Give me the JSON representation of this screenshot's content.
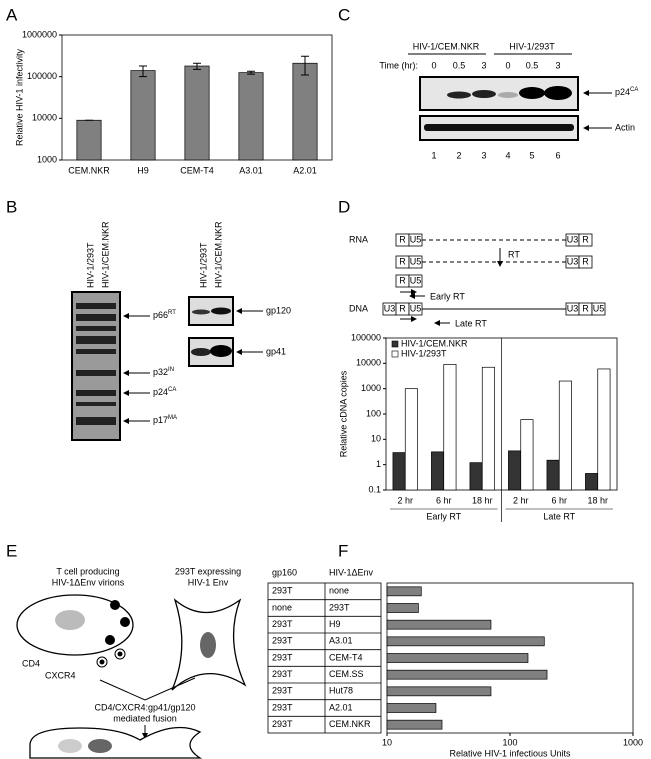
{
  "panel_labels": [
    "A",
    "B",
    "C",
    "D",
    "E",
    "F"
  ],
  "chart_data": [
    {
      "type": "bar",
      "y_label": "Relative HIV-1 infectivity",
      "categories": [
        "CEM.NKR",
        "H9",
        "CEM-T4",
        "A3.01",
        "A2.01"
      ],
      "values": [
        9000,
        140000,
        180000,
        125000,
        210000
      ],
      "errors": [
        0,
        40000,
        30000,
        10000,
        100000
      ],
      "color": "#808080",
      "log_scale": true,
      "ylim": [
        1000,
        1000000
      ],
      "yticks": [
        1000,
        10000,
        100000,
        1000000
      ]
    },
    {
      "type": "bar",
      "y_label": "Relative cDNA copies",
      "categories": [
        "2 hr",
        "6 hr",
        "18 hr",
        "2 hr",
        "6 hr",
        "18 hr"
      ],
      "group_labels": [
        "Early RT",
        "Late RT"
      ],
      "series": [
        {
          "name": "HIV-1/CEM.NKR",
          "color": "#333333",
          "values": [
            3,
            3.2,
            1.2,
            3.5,
            1.5,
            0.45
          ]
        },
        {
          "name": "HIV-1/293T",
          "color": "#ffffff",
          "values": [
            1000,
            9000,
            7000,
            60,
            2000,
            6000
          ]
        }
      ],
      "log_scale": true,
      "legend": "upper left",
      "ylim": [
        0.1,
        100000
      ],
      "yticks": [
        0.1,
        1,
        10,
        100,
        1000,
        10000,
        100000
      ]
    },
    {
      "type": "barh",
      "x_label": "Relative HIV-1 infectious Units",
      "column_headers": [
        "gp160",
        "HIV-1ΔEnv"
      ],
      "gp160": [
        "293T",
        "none",
        "293T",
        "293T",
        "293T",
        "293T",
        "293T",
        "293T",
        "293T"
      ],
      "categories": [
        "none",
        "293T",
        "H9",
        "A3.01",
        "CEM-T4",
        "CEM.SS",
        "Hut78",
        "A2.01",
        "CEM.NKR"
      ],
      "values": [
        19,
        18,
        70,
        190,
        140,
        200,
        70,
        25,
        28
      ],
      "color": "#808080",
      "log_scale": true,
      "xlim": [
        10,
        1000
      ],
      "xticks": [
        10,
        100,
        1000
      ]
    }
  ],
  "blot_b": {
    "lanes_left": [
      "HIV-1/293T",
      "HIV-1/CEM.NKR"
    ],
    "bands_left": [
      {
        "name": "p66",
        "sup": "RT"
      },
      {
        "name": "p32",
        "sup": "IN"
      },
      {
        "name": "p24",
        "sup": "CA"
      },
      {
        "name": "p17",
        "sup": "MA"
      }
    ],
    "lanes_right": [
      "HIV-1/293T",
      "HIV-1/CEM.NKR"
    ],
    "bands_right": [
      "gp120",
      "gp41"
    ]
  },
  "blot_c": {
    "groups": [
      "HIV-1/CEM.NKR",
      "HIV-1/293T"
    ],
    "time_label": "Time (hr):",
    "times": [
      "0",
      "0.5",
      "3",
      "0",
      "0.5",
      "3"
    ],
    "band_top": {
      "name": "p24",
      "sup": "CA"
    },
    "band_bottom": "Actin",
    "lanes": [
      "1",
      "2",
      "3",
      "4",
      "5",
      "6"
    ]
  },
  "scheme_d": {
    "rna": "RNA",
    "dna": "DNA",
    "rt": "RT",
    "early": "Early RT",
    "late": "Late RT",
    "r": "R",
    "u5": "U5",
    "u3": "U3"
  },
  "diagram_e": {
    "cell_title": [
      "T cell producing",
      "HIV-1ΔEnv virions"
    ],
    "env_title": [
      "293T expressing",
      "HIV-1 Env"
    ],
    "cd4": "CD4",
    "cxcr4": "CXCR4",
    "fusion": [
      "CD4/CXCR4:gp41/gp120",
      "mediated fusion"
    ]
  }
}
